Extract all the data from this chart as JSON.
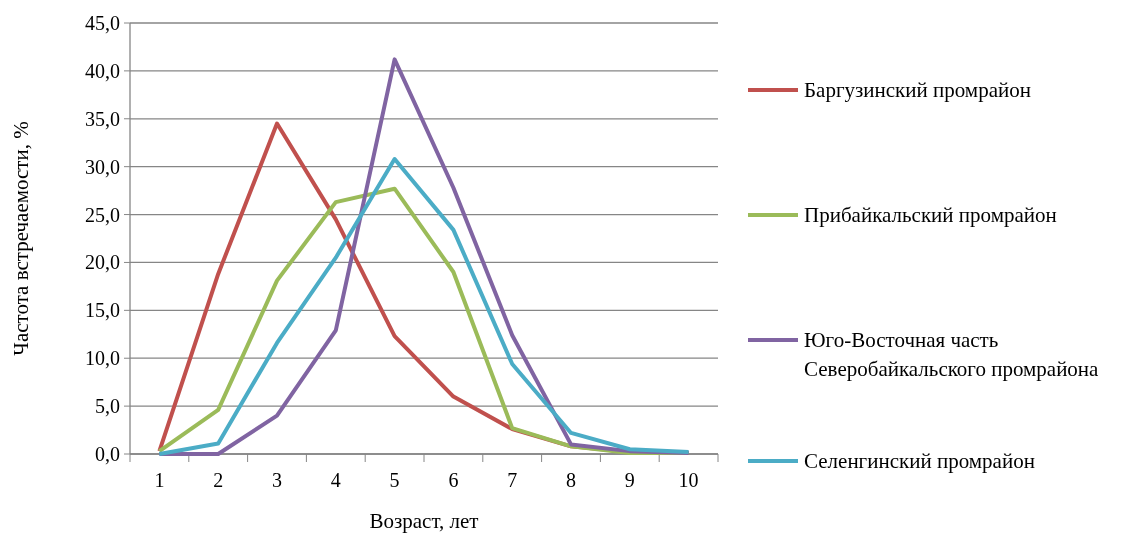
{
  "chart_data": {
    "type": "line",
    "xlabel": "Возраст, лет",
    "ylabel": "Частота встречаемости, %",
    "categories": [
      "1",
      "2",
      "3",
      "4",
      "5",
      "6",
      "7",
      "8",
      "9",
      "10"
    ],
    "series": [
      {
        "name": "Баргузинский промрайон",
        "color": "#c0504d",
        "values": [
          0.3,
          18.8,
          34.5,
          24.5,
          12.3,
          6.0,
          2.6,
          0.8,
          0.2,
          0.1
        ]
      },
      {
        "name": "Прибайкальский промрайон",
        "color": "#9bbb59",
        "values": [
          0.3,
          4.6,
          18.1,
          26.3,
          27.7,
          19.0,
          2.7,
          0.8,
          0.1,
          0.1
        ]
      },
      {
        "name": "Юго-Восточная часть Северобайкальского промрайона",
        "color": "#8064a2",
        "values": [
          0,
          0,
          4.0,
          12.9,
          41.2,
          27.8,
          12.4,
          1.0,
          0.3,
          0.1
        ]
      },
      {
        "name": "Селенгинский промрайон",
        "color": "#4bacc6",
        "values": [
          0,
          1.1,
          11.6,
          20.5,
          30.8,
          23.4,
          9.4,
          2.2,
          0.5,
          0.2
        ]
      }
    ],
    "ylim": [
      0,
      45
    ],
    "yticks": [
      {
        "value": 0,
        "label": "0,0"
      },
      {
        "value": 5,
        "label": "5,0"
      },
      {
        "value": 10,
        "label": "10,0"
      },
      {
        "value": 15,
        "label": "15,0"
      },
      {
        "value": 20,
        "label": "20,0"
      },
      {
        "value": 25,
        "label": "25,0"
      },
      {
        "value": 30,
        "label": "30,0"
      },
      {
        "value": 35,
        "label": "35,0"
      },
      {
        "value": 40,
        "label": "40,0"
      },
      {
        "value": 45,
        "label": "45,0"
      }
    ],
    "grid": "y",
    "legend": "right",
    "marker": "none",
    "line_style": "solid"
  }
}
